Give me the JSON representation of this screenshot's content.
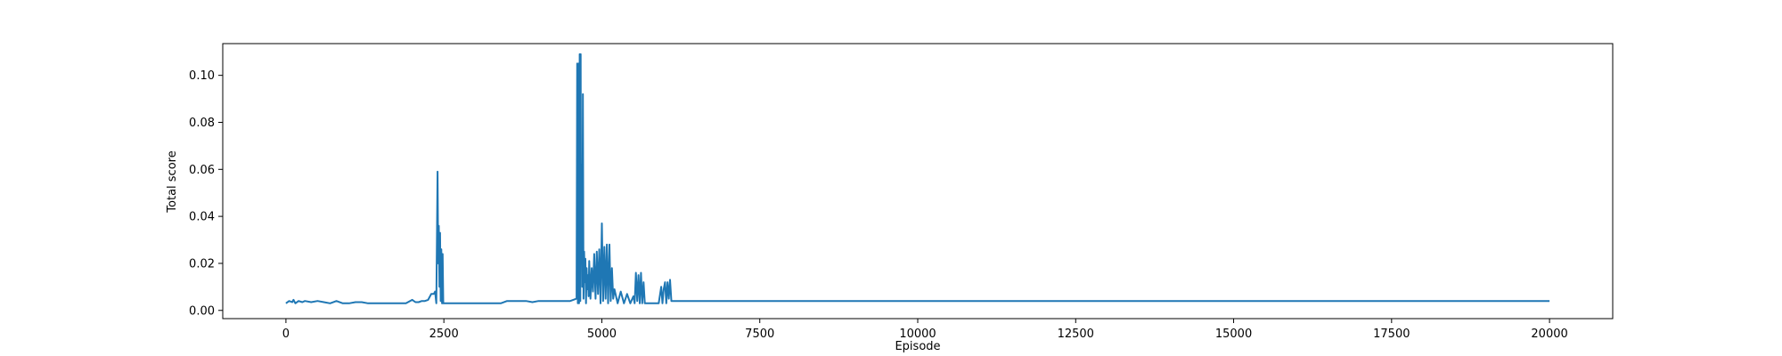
{
  "chart_data": {
    "type": "line",
    "title": "",
    "xlabel": "Episode",
    "ylabel": "Total score",
    "xlim": [
      -1000,
      21000
    ],
    "ylim": [
      -0.0035,
      0.1135
    ],
    "x_ticks": [
      0,
      2500,
      5000,
      7500,
      10000,
      12500,
      15000,
      17500,
      20000
    ],
    "x_tick_labels": [
      "0",
      "2500",
      "5000",
      "7500",
      "10000",
      "12500",
      "15000",
      "17500",
      "20000"
    ],
    "y_ticks": [
      0.0,
      0.02,
      0.04,
      0.06,
      0.08,
      0.1
    ],
    "y_tick_labels": [
      "0.00",
      "0.02",
      "0.04",
      "0.06",
      "0.08",
      "0.10"
    ],
    "grid": false,
    "legend": "none",
    "series": [
      {
        "color": "#1f77b4",
        "x": [
          0,
          50,
          100,
          120,
          150,
          200,
          260,
          300,
          400,
          500,
          600,
          700,
          800,
          900,
          1000,
          1100,
          1200,
          1300,
          1400,
          1500,
          1600,
          1700,
          1800,
          1900,
          2000,
          2050,
          2100,
          2150,
          2200,
          2250,
          2300,
          2340,
          2360,
          2380,
          2400,
          2410,
          2420,
          2430,
          2440,
          2450,
          2460,
          2470,
          2480,
          2490,
          2500,
          2520,
          2600,
          2800,
          3000,
          3200,
          3400,
          3500,
          3600,
          3700,
          3800,
          3900,
          4000,
          4100,
          4200,
          4300,
          4400,
          4500,
          4600,
          4610,
          4620,
          4630,
          4640,
          4650,
          4660,
          4665,
          4670,
          4680,
          4690,
          4700,
          4710,
          4720,
          4730,
          4740,
          4750,
          4760,
          4770,
          4780,
          4790,
          4800,
          4820,
          4840,
          4860,
          4880,
          4900,
          4920,
          4940,
          4960,
          4980,
          5000,
          5020,
          5040,
          5060,
          5080,
          5100,
          5120,
          5140,
          5160,
          5180,
          5200,
          5250,
          5300,
          5350,
          5400,
          5450,
          5500,
          5520,
          5540,
          5560,
          5580,
          5600,
          5620,
          5640,
          5660,
          5680,
          5700,
          5800,
          5900,
          5940,
          5960,
          5980,
          6000,
          6020,
          6040,
          6060,
          6080,
          6100,
          6200,
          6400,
          6600,
          6800,
          7000,
          8000,
          10000,
          12000,
          14000,
          16000,
          18000,
          20000
        ],
        "y": [
          0.003,
          0.004,
          0.0035,
          0.0045,
          0.003,
          0.004,
          0.0035,
          0.004,
          0.0035,
          0.004,
          0.0035,
          0.003,
          0.004,
          0.003,
          0.003,
          0.0035,
          0.0035,
          0.003,
          0.003,
          0.003,
          0.003,
          0.003,
          0.003,
          0.003,
          0.0045,
          0.0035,
          0.0035,
          0.004,
          0.004,
          0.0045,
          0.007,
          0.007,
          0.008,
          0.003,
          0.059,
          0.02,
          0.036,
          0.01,
          0.033,
          0.004,
          0.026,
          0.003,
          0.024,
          0.003,
          0.003,
          0.003,
          0.003,
          0.003,
          0.003,
          0.003,
          0.003,
          0.004,
          0.004,
          0.004,
          0.004,
          0.0035,
          0.004,
          0.004,
          0.004,
          0.004,
          0.004,
          0.004,
          0.005,
          0.105,
          0.003,
          0.105,
          0.003,
          0.109,
          0.004,
          0.109,
          0.02,
          0.062,
          0.01,
          0.092,
          0.005,
          0.025,
          0.012,
          0.022,
          0.003,
          0.018,
          0.009,
          0.015,
          0.006,
          0.021,
          0.005,
          0.018,
          0.008,
          0.024,
          0.005,
          0.025,
          0.007,
          0.026,
          0.003,
          0.037,
          0.004,
          0.027,
          0.005,
          0.028,
          0.003,
          0.028,
          0.004,
          0.018,
          0.005,
          0.009,
          0.003,
          0.008,
          0.003,
          0.007,
          0.003,
          0.006,
          0.003,
          0.016,
          0.004,
          0.015,
          0.003,
          0.016,
          0.003,
          0.012,
          0.003,
          0.003,
          0.003,
          0.003,
          0.01,
          0.003,
          0.009,
          0.012,
          0.003,
          0.012,
          0.005,
          0.013,
          0.004,
          0.004,
          0.004,
          0.004,
          0.004,
          0.004,
          0.004,
          0.004,
          0.004,
          0.004,
          0.004,
          0.004,
          0.004
        ]
      }
    ]
  }
}
